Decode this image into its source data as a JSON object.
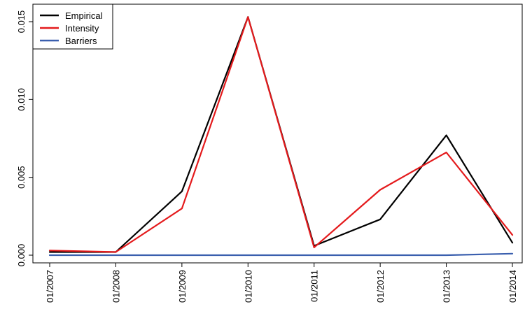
{
  "chart_data": {
    "type": "line",
    "title": "",
    "xlabel": "",
    "ylabel": "",
    "categories": [
      "01/2007",
      "01/2008",
      "01/2009",
      "01/2010",
      "01/2011",
      "01/2012",
      "01/2013",
      "01/2014"
    ],
    "ylim": [
      -0.0005,
      0.0155
    ],
    "yticks": [
      0.0,
      0.005,
      0.01,
      0.015
    ],
    "ytick_labels": [
      "0.000",
      "0.005",
      "0.010",
      "0.015"
    ],
    "grid": false,
    "legend_position": "top-left",
    "series": [
      {
        "name": "Empirical",
        "color": "#000000",
        "values": [
          0.0002,
          0.0002,
          0.0041,
          0.0153,
          0.0006,
          0.0023,
          0.0077,
          0.0008
        ]
      },
      {
        "name": "Intensity",
        "color": "#e41a1c",
        "values": [
          0.0003,
          0.0002,
          0.003,
          0.0153,
          0.0005,
          0.0042,
          0.0066,
          0.0013
        ]
      },
      {
        "name": "Barriers",
        "color": "#3a5fae",
        "values": [
          0.0,
          0.0,
          0.0,
          0.0,
          0.0,
          0.0,
          0.0,
          0.0001
        ]
      }
    ]
  }
}
